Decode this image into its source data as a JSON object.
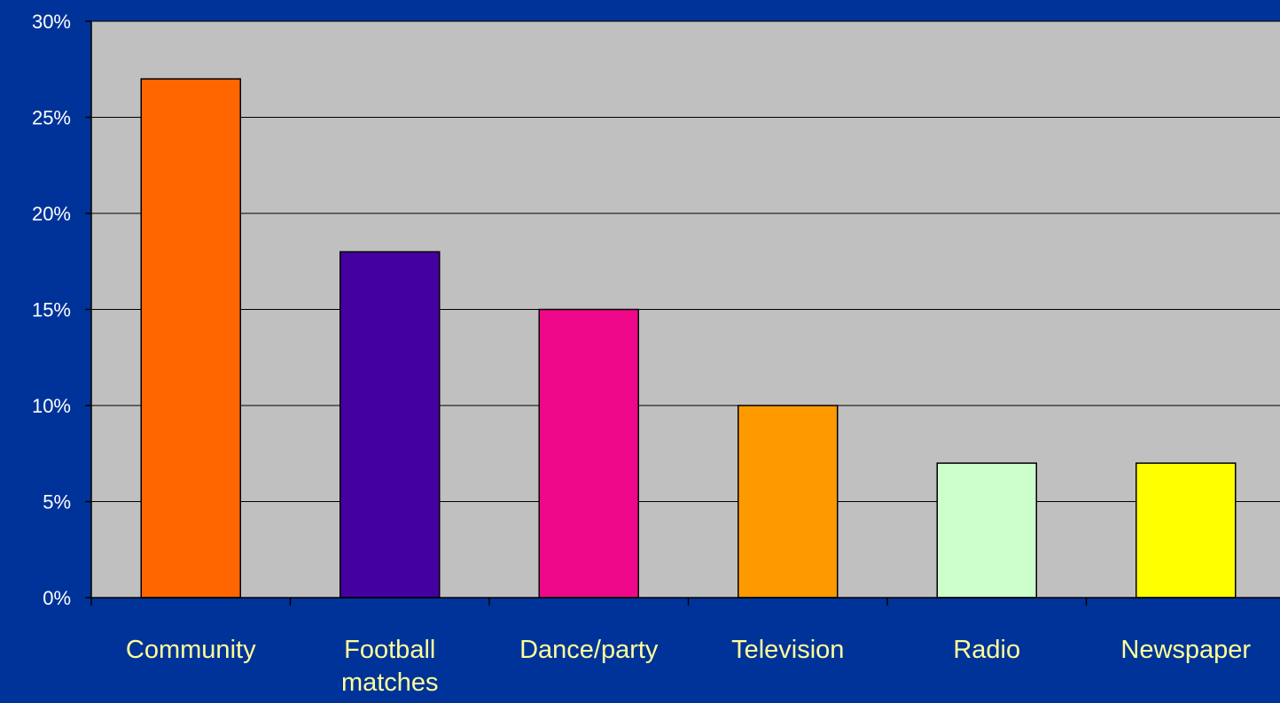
{
  "chart_data": {
    "type": "bar",
    "categories": [
      "Community",
      "Football matches",
      "Dance/party",
      "Television",
      "Radio",
      "Newspaper"
    ],
    "category_lines": [
      [
        "Community"
      ],
      [
        "Football",
        "matches"
      ],
      [
        "Dance/party"
      ],
      [
        "Television"
      ],
      [
        "Radio"
      ],
      [
        "Newspaper"
      ]
    ],
    "values": [
      27,
      18,
      15,
      10,
      7,
      7
    ],
    "colors": [
      "#ff6600",
      "#4400a0",
      "#f0088a",
      "#ff9900",
      "#ccffcc",
      "#ffff00"
    ],
    "ylim": [
      0,
      30
    ],
    "yticks": [
      0,
      5,
      10,
      15,
      20,
      25,
      30
    ],
    "ytick_labels": [
      "0%",
      "5%",
      "10%",
      "15%",
      "20%",
      "25%",
      "30%"
    ],
    "grid": true,
    "plot_background": "#c0c0c0",
    "page_background": "#003399",
    "x_label_color": "#ffff99",
    "y_label_color": "#ffffff"
  }
}
